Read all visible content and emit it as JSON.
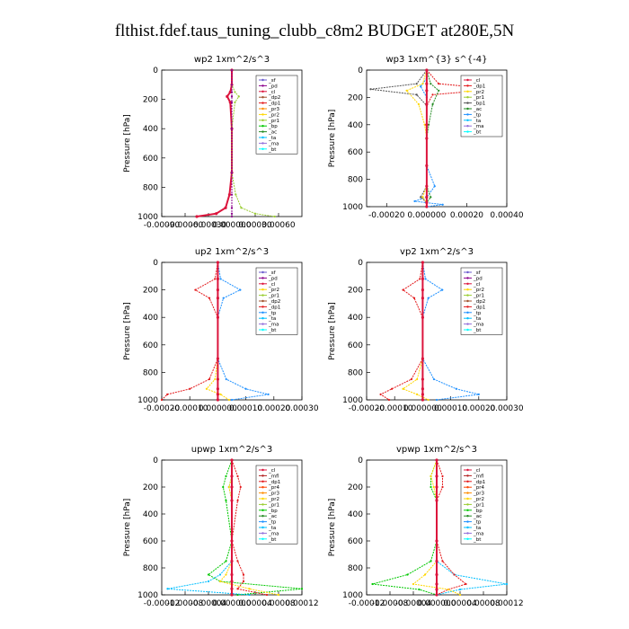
{
  "figure": {
    "title": "flthist.fdef.taus_tuning_clubb_c8m2  BUDGET at280E,5N"
  },
  "colors": {
    "sf": "#6a5acd",
    "pd": "#8b008b",
    "cl": "#dc143c",
    "dp2": "#a0522d",
    "dp1": "#e31a1c",
    "pr3": "#ff8c00",
    "pr2": "#ffd700",
    "pr1": "#9acd32",
    "bp": "#00c800",
    "ac": "#228b22",
    "tp": "#1e90ff",
    "ta": "#00bfff",
    "ma": "#9370db",
    "bt": "#00ffff",
    "mfl": "#b22222",
    "pr4": "#ff4500"
  },
  "chart_data": [
    {
      "type": "line",
      "title": "wp2   1xm^2/s^3",
      "ylabel": "Pressure [hPa]",
      "ylim": [
        1000,
        0
      ],
      "yticks": [
        "0",
        "200",
        "400",
        "600",
        "800",
        "1000"
      ],
      "xlim": [
        -0.0009,
        0.0009
      ],
      "xticks": [
        "-0.00090",
        "-0.00060",
        "-0.00030",
        "0.000000",
        "0.00030",
        "0.00060"
      ],
      "xtick_values": [
        -0.0009,
        -0.0006,
        -0.0003,
        0.0,
        0.0003,
        0.0006
      ],
      "legend": [
        "_sf",
        "_pd",
        "_cl",
        "_dp2",
        "_dp1",
        "_pr3",
        "_pr2",
        "_pr1",
        "_bp",
        "_ac",
        "_ta",
        "_ma",
        "_bt"
      ],
      "series": [
        {
          "name": "_cl",
          "x": [
            0,
            0,
            -2e-05,
            -6e-05,
            -2e-05,
            0,
            0,
            -3e-05,
            -8e-05,
            -0.0002,
            -0.00045
          ],
          "y": [
            0,
            100,
            150,
            180,
            220,
            400,
            700,
            850,
            940,
            980,
            1000
          ]
        },
        {
          "name": "_pr1",
          "x": [
            0,
            0,
            4e-05,
            9e-05,
            4e-05,
            0,
            0,
            5e-05,
            0.00012,
            0.0003,
            0.00055
          ],
          "y": [
            0,
            100,
            150,
            180,
            220,
            400,
            700,
            850,
            940,
            980,
            1000
          ]
        },
        {
          "name": "_pd",
          "x": [
            0,
            0,
            0,
            0,
            0,
            0,
            0,
            0,
            0,
            0,
            0
          ],
          "y": [
            0,
            100,
            150,
            180,
            220,
            400,
            700,
            850,
            940,
            980,
            1000
          ]
        }
      ]
    },
    {
      "type": "line",
      "title": "wp3   1xm^{3} s^{-4}",
      "ylabel": "Pressure [hPa]",
      "ylim": [
        1000,
        0
      ],
      "yticks": [
        "0",
        "200",
        "400",
        "600",
        "800",
        "1000"
      ],
      "xlim": [
        -0.0003,
        0.0004
      ],
      "xticks": [
        "-0.00020",
        "0.000000",
        "0.00020",
        "0.00040"
      ],
      "xtick_values": [
        -0.0002,
        0.0,
        0.0002,
        0.0004
      ],
      "legend": [
        "_cl",
        "_dp1",
        "_pr2",
        "_pr1",
        "_bp1",
        "_ac",
        "_tp",
        "_ta",
        "_ma",
        "_bt"
      ],
      "series": [
        {
          "name": "_tp",
          "x": [
            0,
            0,
            -3e-05,
            0,
            0,
            0,
            4e-05,
            0,
            -6e-05,
            8e-05,
            0
          ],
          "y": [
            0,
            60,
            120,
            200,
            400,
            700,
            850,
            930,
            960,
            985,
            1000
          ]
        },
        {
          "name": "_dp1",
          "x": [
            0,
            6e-05,
            0.00035,
            3e-05,
            0,
            0,
            0,
            0,
            0,
            0,
            0
          ],
          "y": [
            0,
            100,
            140,
            180,
            260,
            400,
            700,
            850,
            930,
            970,
            1000
          ]
        },
        {
          "name": "_bp1",
          "x": [
            0,
            -5e-05,
            -0.00028,
            -5e-05,
            0,
            0,
            0,
            0,
            -3e-05,
            0,
            0
          ],
          "y": [
            0,
            100,
            140,
            180,
            260,
            400,
            700,
            850,
            930,
            970,
            1000
          ]
        },
        {
          "name": "_pr2",
          "x": [
            0,
            -2e-05,
            -0.0001,
            -4e-05,
            -1e-05,
            0,
            0,
            0,
            -2e-05,
            0,
            0
          ],
          "y": [
            0,
            100,
            150,
            250,
            400,
            500,
            700,
            850,
            930,
            970,
            1000
          ]
        },
        {
          "name": "_ac",
          "x": [
            0,
            2e-05,
            6e-05,
            3e-05,
            1e-05,
            0,
            0,
            0,
            2e-05,
            0,
            0
          ],
          "y": [
            0,
            100,
            150,
            250,
            400,
            500,
            700,
            850,
            930,
            970,
            1000
          ]
        },
        {
          "name": "_cl",
          "x": [
            0,
            0,
            0,
            0,
            0,
            0,
            0,
            0,
            0,
            0,
            0
          ],
          "y": [
            0,
            100,
            150,
            250,
            400,
            500,
            700,
            850,
            930,
            970,
            1000
          ]
        }
      ]
    },
    {
      "type": "line",
      "title": "up2   1xm^2/s^3",
      "ylabel": "Pressure [hPa]",
      "ylim": [
        1000,
        0
      ],
      "yticks": [
        "0",
        "200",
        "400",
        "600",
        "800",
        "1000"
      ],
      "xlim": [
        -0.0002,
        0.0003
      ],
      "xticks": [
        "-0.00020",
        "-0.00010",
        "0.000000",
        "0.00010",
        "0.00020",
        "0.00030"
      ],
      "xtick_values": [
        -0.0002,
        -0.0001,
        0.0,
        0.0001,
        0.0002,
        0.0003
      ],
      "legend": [
        "_sf",
        "_pd",
        "_cl",
        "_pr2",
        "_pr1",
        "_dp2",
        "_dp1",
        "_tp",
        "_ta",
        "_ma",
        "_bt"
      ],
      "series": [
        {
          "name": "_tp",
          "x": [
            0,
            1e-05,
            8e-05,
            2e-05,
            0,
            0,
            3e-05,
            0.0001,
            0.00018,
            5e-05
          ],
          "y": [
            0,
            120,
            200,
            260,
            400,
            700,
            850,
            920,
            960,
            1000
          ]
        },
        {
          "name": "_dp1",
          "x": [
            0,
            -1e-05,
            -8e-05,
            -3e-05,
            0,
            0,
            -3e-05,
            -0.0001,
            -0.00018,
            -0.0002
          ],
          "y": [
            0,
            120,
            200,
            260,
            400,
            700,
            850,
            920,
            960,
            1000
          ]
        },
        {
          "name": "_pr2",
          "x": [
            0,
            0,
            0,
            0,
            0,
            0,
            -1e-05,
            -4e-05,
            1e-05,
            4e-05
          ],
          "y": [
            0,
            120,
            200,
            260,
            400,
            700,
            850,
            920,
            960,
            1000
          ]
        },
        {
          "name": "_cl",
          "x": [
            0,
            0,
            0,
            0,
            0,
            0,
            0,
            0,
            0,
            0
          ],
          "y": [
            0,
            120,
            200,
            260,
            400,
            700,
            850,
            920,
            960,
            1000
          ]
        }
      ]
    },
    {
      "type": "line",
      "title": "vp2   1xm^2/s^3",
      "ylabel": "Pressure [hPa]",
      "ylim": [
        1000,
        0
      ],
      "yticks": [
        "0",
        "200",
        "400",
        "600",
        "800",
        "1000"
      ],
      "xlim": [
        -0.0002,
        0.0003
      ],
      "xticks": [
        "-0.00020",
        "-0.00010",
        "0.000000",
        "0.00010",
        "0.00020",
        "0.00030"
      ],
      "xtick_values": [
        -0.0002,
        -0.0001,
        0.0,
        0.0001,
        0.0002,
        0.0003
      ],
      "legend": [
        "_sf",
        "_pd",
        "_cl",
        "_pr2",
        "_pr1",
        "_dp2",
        "_dp1",
        "_tp",
        "_ta",
        "_ma",
        "_bt"
      ],
      "series": [
        {
          "name": "_tp",
          "x": [
            0,
            1e-05,
            7e-05,
            2e-05,
            0,
            0,
            4e-05,
            0.00012,
            0.0002,
            5e-05
          ],
          "y": [
            0,
            120,
            200,
            260,
            400,
            700,
            850,
            920,
            960,
            1000
          ]
        },
        {
          "name": "_dp1",
          "x": [
            0,
            -1e-05,
            -7e-05,
            -3e-05,
            0,
            0,
            -4e-05,
            -0.00011,
            -0.00015,
            -0.00012
          ],
          "y": [
            0,
            120,
            200,
            260,
            400,
            700,
            850,
            920,
            960,
            1000
          ]
        },
        {
          "name": "_pr2",
          "x": [
            0,
            0,
            0,
            0,
            0,
            0,
            -2e-05,
            -7e-05,
            -2e-05,
            2e-05
          ],
          "y": [
            0,
            120,
            200,
            260,
            400,
            700,
            850,
            920,
            960,
            1000
          ]
        },
        {
          "name": "_cl",
          "x": [
            0,
            0,
            0,
            0,
            0,
            0,
            0,
            0,
            0,
            0
          ],
          "y": [
            0,
            120,
            200,
            260,
            400,
            700,
            850,
            920,
            960,
            1000
          ]
        }
      ]
    },
    {
      "type": "line",
      "title": "upwp   1xm^2/s^3",
      "ylabel": "Pressure [hPa]",
      "ylim": [
        1000,
        0
      ],
      "yticks": [
        "0",
        "200",
        "400",
        "600",
        "800",
        "1000"
      ],
      "xlim": [
        -0.00012,
        0.00012
      ],
      "xticks": [
        "-0.00012",
        "-0.00008",
        "-0.00004",
        "0.000000",
        "0.00004",
        "0.00008",
        "0.00012"
      ],
      "xtick_values": [
        -0.00012,
        -8e-05,
        -4e-05,
        0.0,
        4e-05,
        8e-05,
        0.00012
      ],
      "legend": [
        "_cl",
        "_mfl",
        "_dp1",
        "_pr4",
        "_pr3",
        "_pr2",
        "_pr1",
        "_bp",
        "_ac",
        "_tp",
        "_ta",
        "_ma",
        "_bt"
      ],
      "series": [
        {
          "name": "_bp",
          "x": [
            0,
            -1e-05,
            -1.5e-05,
            -1e-05,
            0,
            -1e-05,
            -4e-05,
            -2e-05,
            0.00012,
            1e-05
          ],
          "y": [
            0,
            120,
            200,
            300,
            600,
            750,
            850,
            900,
            955,
            1000
          ]
        },
        {
          "name": "_ta",
          "x": [
            0,
            0,
            -5e-06,
            0,
            0,
            0,
            -2e-05,
            -4e-05,
            -0.00011,
            3e-05
          ],
          "y": [
            0,
            120,
            200,
            300,
            600,
            750,
            850,
            900,
            955,
            1000
          ]
        },
        {
          "name": "_dp1",
          "x": [
            0,
            1e-05,
            1.5e-05,
            1e-05,
            0,
            1e-05,
            2e-05,
            2e-05,
            1e-05,
            6e-05
          ],
          "y": [
            0,
            120,
            200,
            300,
            600,
            750,
            850,
            900,
            955,
            1000
          ]
        },
        {
          "name": "_pr2",
          "x": [
            0,
            0,
            -5e-06,
            0,
            0,
            0,
            -1e-05,
            -2e-05,
            3e-05,
            8e-05
          ],
          "y": [
            0,
            120,
            200,
            300,
            600,
            750,
            850,
            900,
            955,
            1000
          ]
        },
        {
          "name": "_cl",
          "x": [
            0,
            0,
            0,
            0,
            0,
            0,
            0,
            0,
            0,
            0
          ],
          "y": [
            0,
            120,
            200,
            300,
            600,
            750,
            850,
            900,
            955,
            1000
          ]
        }
      ]
    },
    {
      "type": "line",
      "title": "vpwp   1xm^2/s^3",
      "ylabel": "Pressure [hPa]",
      "ylim": [
        1000,
        0
      ],
      "yticks": [
        "0",
        "200",
        "400",
        "600",
        "800",
        "1000"
      ],
      "xlim": [
        -0.00012,
        0.00012
      ],
      "xticks": [
        "-0.00012",
        "-0.00008",
        "-0.00004",
        "0.000000",
        "0.00004",
        "0.00008",
        "0.00012"
      ],
      "xtick_values": [
        -0.00012,
        -8e-05,
        -4e-05,
        0.0,
        4e-05,
        8e-05,
        0.00012
      ],
      "legend": [
        "_cl",
        "_mfl",
        "_dp1",
        "_pr4",
        "_pr3",
        "_pr2",
        "_pr1",
        "_bp",
        "_ac",
        "_tp",
        "_ta",
        "_ma",
        "_bt"
      ],
      "series": [
        {
          "name": "_bp",
          "x": [
            0,
            -1e-05,
            -1e-05,
            0,
            0,
            -1e-05,
            -5e-05,
            -0.00011,
            -3e-05,
            0
          ],
          "y": [
            0,
            120,
            200,
            300,
            600,
            750,
            850,
            920,
            960,
            1000
          ]
        },
        {
          "name": "_ta",
          "x": [
            0,
            0,
            0,
            0,
            0,
            0,
            3e-05,
            0.00012,
            4e-05,
            0
          ],
          "y": [
            0,
            120,
            200,
            300,
            600,
            750,
            850,
            920,
            960,
            1000
          ]
        },
        {
          "name": "_dp1",
          "x": [
            0,
            1e-05,
            1e-05,
            0,
            0,
            1e-05,
            3e-05,
            5e-05,
            2e-05,
            0
          ],
          "y": [
            0,
            120,
            200,
            300,
            600,
            750,
            850,
            920,
            960,
            1000
          ]
        },
        {
          "name": "_pr2",
          "x": [
            0,
            -1e-05,
            -5e-06,
            0,
            0,
            0,
            -2e-05,
            -4e-05,
            2e-05,
            4e-05
          ],
          "y": [
            0,
            120,
            200,
            300,
            600,
            750,
            850,
            920,
            960,
            1000
          ]
        },
        {
          "name": "_cl",
          "x": [
            0,
            0,
            0,
            0,
            0,
            0,
            0,
            0,
            0,
            0
          ],
          "y": [
            0,
            120,
            200,
            300,
            600,
            750,
            850,
            920,
            960,
            1000
          ]
        }
      ]
    }
  ]
}
